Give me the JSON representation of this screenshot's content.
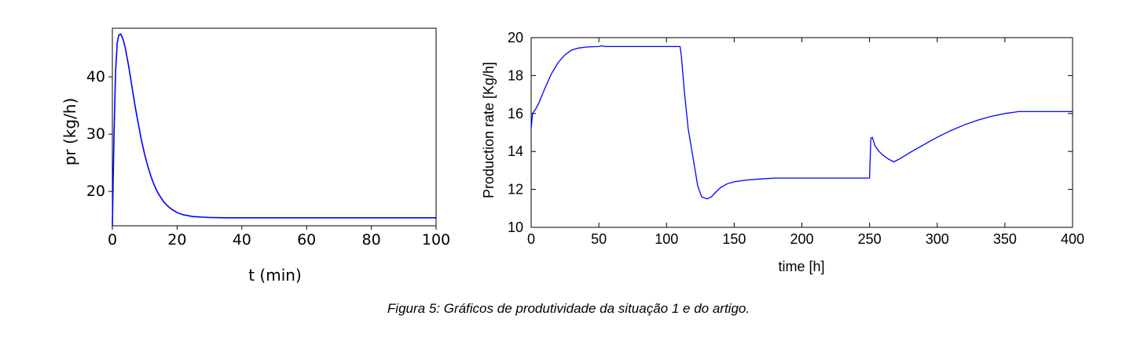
{
  "caption": "Figura 5: Gráficos de produtividade da situação 1 e do artigo.",
  "chart_data": [
    {
      "type": "line",
      "xlabel": "t (min)",
      "ylabel": "pr (kg/h)",
      "xlim": [
        0,
        100
      ],
      "ylim": [
        14.0,
        48.5
      ],
      "xticks": [
        0,
        20,
        40,
        60,
        80,
        100
      ],
      "yticks": [
        20,
        30,
        40
      ],
      "grid": false,
      "color": "#0000ff",
      "series": [
        {
          "x": [
            0,
            0.5,
            1,
            1.5,
            2,
            2.5,
            3,
            3.5,
            4,
            5,
            6,
            7,
            8,
            9,
            10,
            11,
            12,
            13,
            14,
            15,
            16,
            17,
            18,
            20,
            22,
            25,
            28,
            30,
            35,
            40,
            50,
            60,
            70,
            80,
            90,
            100
          ],
          "y": [
            14.0,
            30.0,
            41.0,
            46.0,
            47.3,
            47.5,
            47.0,
            46.2,
            45.0,
            42.0,
            38.5,
            35.0,
            31.8,
            28.9,
            26.4,
            24.3,
            22.5,
            21.0,
            19.8,
            18.9,
            18.1,
            17.5,
            17.0,
            16.3,
            15.9,
            15.6,
            15.5,
            15.45,
            15.4,
            15.4,
            15.4,
            15.4,
            15.4,
            15.4,
            15.4,
            15.4
          ]
        }
      ]
    },
    {
      "type": "line",
      "xlabel": "time [h]",
      "ylabel": "Production rate [Kg/h]",
      "xlim": [
        0,
        400
      ],
      "ylim": [
        10,
        20
      ],
      "xticks": [
        0,
        50,
        100,
        150,
        200,
        250,
        300,
        350,
        400
      ],
      "yticks": [
        10,
        12,
        14,
        16,
        18,
        20
      ],
      "grid": false,
      "color": "#0000ff",
      "series": [
        {
          "x": [
            0,
            1,
            3,
            6,
            10,
            15,
            20,
            25,
            30,
            35,
            40,
            45,
            50,
            52,
            55,
            60,
            80,
            100,
            110,
            111,
            113,
            116,
            120,
            123,
            126,
            130,
            133,
            137,
            140,
            145,
            150,
            160,
            170,
            180,
            200,
            220,
            240,
            250,
            251,
            252,
            254,
            257,
            260,
            264,
            268,
            272,
            280,
            290,
            300,
            310,
            320,
            330,
            340,
            350,
            355,
            360,
            380,
            400
          ],
          "y": [
            15.2,
            16.0,
            16.2,
            16.6,
            17.3,
            18.1,
            18.7,
            19.1,
            19.35,
            19.45,
            19.5,
            19.52,
            19.53,
            19.57,
            19.53,
            19.53,
            19.53,
            19.53,
            19.53,
            19.0,
            17.3,
            15.2,
            13.5,
            12.2,
            11.6,
            11.5,
            11.6,
            11.9,
            12.1,
            12.3,
            12.4,
            12.5,
            12.55,
            12.6,
            12.6,
            12.6,
            12.6,
            12.6,
            14.7,
            14.75,
            14.3,
            14.0,
            13.8,
            13.6,
            13.45,
            13.6,
            13.95,
            14.35,
            14.75,
            15.1,
            15.4,
            15.65,
            15.85,
            16.0,
            16.05,
            16.1,
            16.1,
            16.1
          ]
        }
      ]
    }
  ]
}
